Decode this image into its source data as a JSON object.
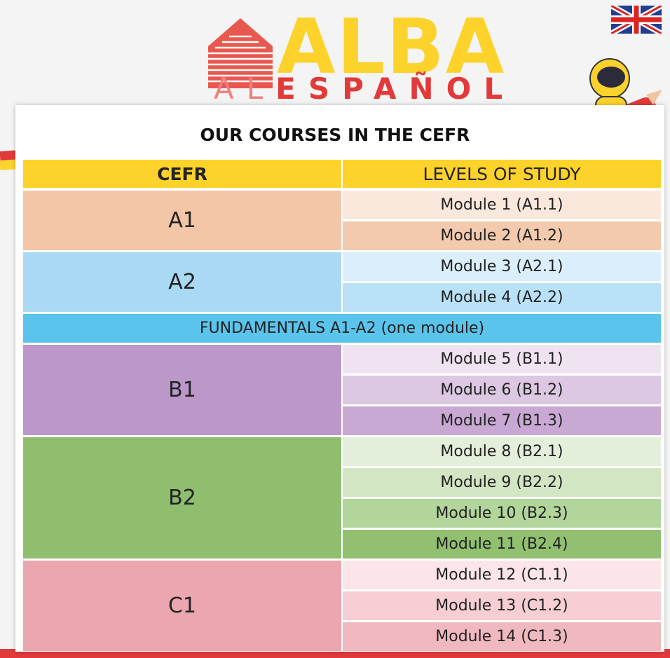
{
  "logo": {
    "brand": "ALBA",
    "tagline_prefix": "AL",
    "tagline": "ESPAÑOL"
  },
  "title": "OUR COURSES IN THE CEFR",
  "table": {
    "header": [
      "CEFR",
      "LEVELS OF STUDY"
    ],
    "header_color": "#fdd22b",
    "rows": [
      {
        "level": "A1",
        "color": "#f2c6a7",
        "modules": [
          "Module 1 (A1.1)",
          "Module 2 (A1.2)"
        ],
        "module_colors": [
          "#fae8dc",
          "#f3caad"
        ]
      },
      {
        "level": "A2",
        "color": "#a9d9f4",
        "modules": [
          "Module 3 (A2.1)",
          "Module 4 (A2.2)"
        ],
        "module_colors": [
          "#daeffb",
          "#b9e1f7"
        ]
      },
      {
        "full_row": "FUNDAMENTALS A1-A2 (one module)",
        "color": "#5bc4ec"
      },
      {
        "level": "B1",
        "color": "#bb98c9",
        "modules": [
          "Module 5 (B1.1)",
          "Module 6 (B1.2)",
          "Module 7 (B1.3)"
        ],
        "module_colors": [
          "#efe3f1",
          "#dcc8e3",
          "#c9a9d4"
        ]
      },
      {
        "level": "B2",
        "color": "#8fbe6f",
        "modules": [
          "Module 8 (B2.1)",
          "Module 9 (B2.2)",
          "Module 10 (B2.3)",
          "Module 11 (B2.4)"
        ],
        "module_colors": [
          "#e3efda",
          "#d3e6c4",
          "#b2d59b",
          "#91c071"
        ]
      },
      {
        "level": "C1",
        "color": "#eca6af",
        "modules": [
          "Module 12 (C1.1)",
          "Module 13 (C1.2)",
          "Module 14 (C1.3)"
        ],
        "module_colors": [
          "#fbe5e8",
          "#f6ced3",
          "#f0b9bf"
        ]
      }
    ]
  }
}
